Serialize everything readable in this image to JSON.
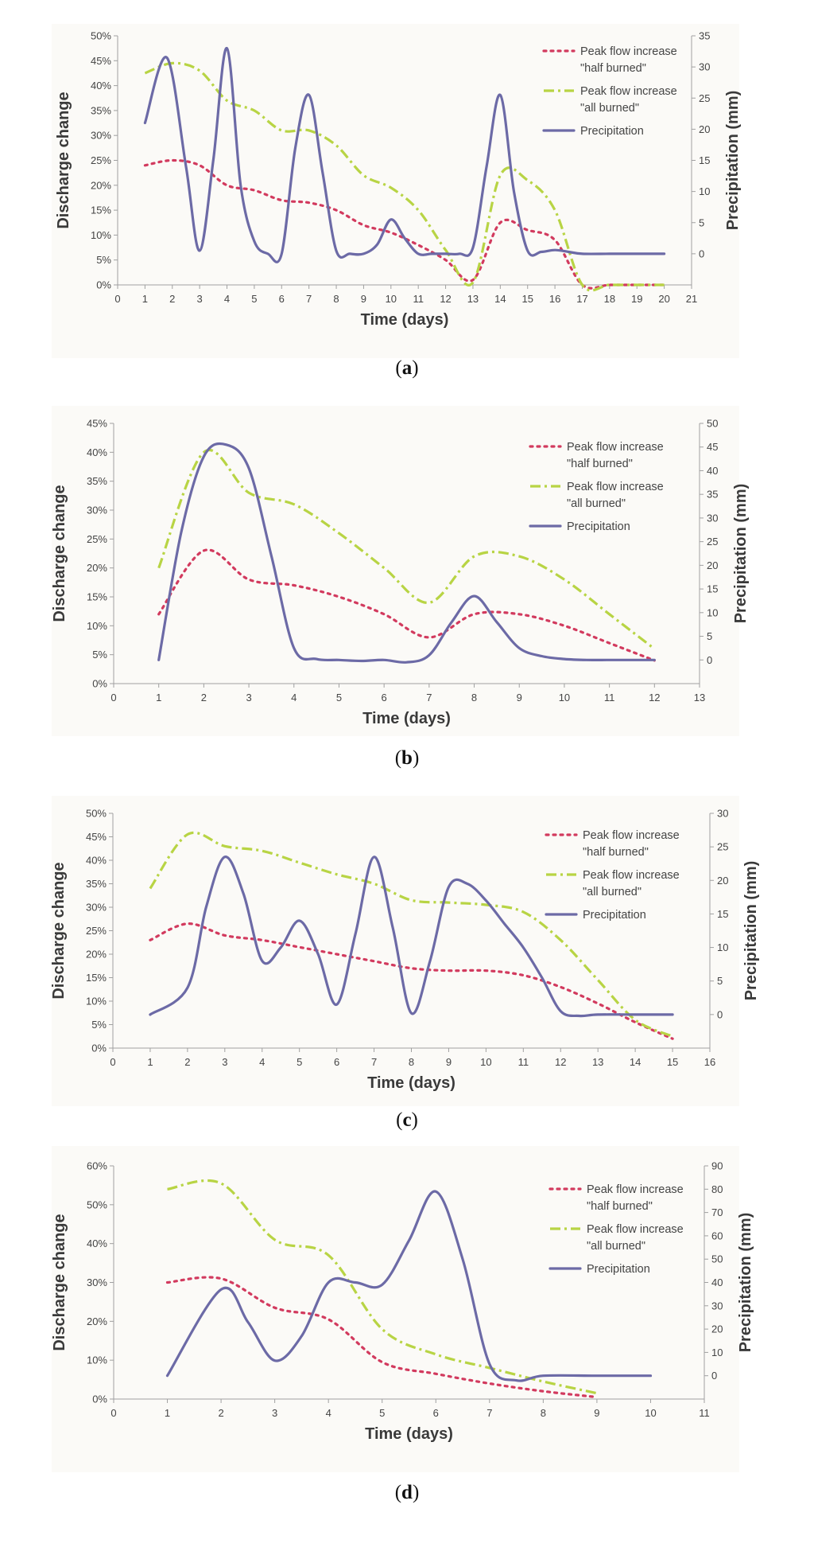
{
  "chart_data": [
    {
      "type": "line",
      "panel_label": "a",
      "xlabel": "Time (days)",
      "ylabel": "Discharge change",
      "y2label": "Precipitation (mm)",
      "xlim": [
        0,
        21
      ],
      "xticks": [
        0,
        1,
        2,
        3,
        4,
        5,
        6,
        7,
        8,
        9,
        10,
        11,
        12,
        13,
        14,
        15,
        16,
        17,
        18,
        19,
        20,
        21
      ],
      "ylim": [
        0,
        50
      ],
      "yticks": [
        0,
        5,
        10,
        15,
        20,
        25,
        30,
        35,
        40,
        45,
        50
      ],
      "y_format": "percent",
      "y2lim": [
        -5,
        35
      ],
      "y2ticks": [
        0,
        5,
        10,
        15,
        20,
        25,
        30,
        35
      ],
      "legend_position": "top-right",
      "series": [
        {
          "name": "Peak flow increase \"half burned\"",
          "legend_lines": [
            "Peak flow increase",
            "\"half burned\""
          ],
          "axis": "left",
          "style": "dotted",
          "color": "#d23a5e",
          "x": [
            1,
            2,
            3,
            4,
            5,
            6,
            7,
            8,
            9,
            10,
            11,
            12,
            13,
            14,
            15,
            16,
            17,
            18,
            19,
            20
          ],
          "y": [
            24,
            25,
            24,
            20,
            19,
            17,
            16.5,
            15,
            12,
            10.5,
            8,
            5,
            1,
            12.5,
            11,
            9,
            0,
            0,
            0,
            0
          ]
        },
        {
          "name": "Peak flow increase \"all burned\"",
          "legend_lines": [
            "Peak flow increase",
            "\"all burned\""
          ],
          "axis": "left",
          "style": "dashdot",
          "color": "#b8d444",
          "x": [
            1,
            2,
            3,
            4,
            5,
            6,
            7,
            8,
            9,
            10,
            11,
            12,
            13,
            14,
            15,
            16,
            17,
            18,
            19,
            20
          ],
          "y": [
            42.5,
            44.5,
            43,
            37,
            35,
            31,
            31,
            28,
            22,
            19.5,
            15,
            7,
            0.5,
            22,
            21,
            15,
            0,
            0,
            0,
            0
          ]
        },
        {
          "name": "Precipitation",
          "legend_lines": [
            "Precipitation"
          ],
          "axis": "right",
          "style": "solid",
          "color": "#6c6aa6",
          "x": [
            1,
            1.8,
            2.5,
            3,
            3.5,
            4,
            4.5,
            5,
            5.5,
            6,
            6.5,
            7,
            7.5,
            8,
            8.5,
            9,
            9.5,
            10,
            10.5,
            11,
            11.5,
            12,
            12.5,
            13,
            13.5,
            14,
            14.5,
            15,
            15.5,
            16,
            16.5,
            17,
            18,
            19,
            20
          ],
          "y": [
            21,
            31.5,
            14,
            0.5,
            15,
            33,
            11,
            2,
            0,
            0,
            17,
            25.5,
            13,
            0.5,
            0,
            0,
            1.5,
            5.5,
            2.5,
            0,
            0,
            0,
            0,
            1,
            14,
            25.5,
            10,
            0.5,
            0.3,
            0.6,
            0.3,
            0,
            0,
            0,
            0
          ]
        }
      ]
    },
    {
      "type": "line",
      "panel_label": "b",
      "xlabel": "Time (days)",
      "ylabel": "Discharge change",
      "y2label": "Precipitation (mm)",
      "xlim": [
        0,
        13
      ],
      "xticks": [
        0,
        1,
        2,
        3,
        4,
        5,
        6,
        7,
        8,
        9,
        10,
        11,
        12,
        13
      ],
      "ylim": [
        0,
        45
      ],
      "yticks": [
        0,
        5,
        10,
        15,
        20,
        25,
        30,
        35,
        40,
        45
      ],
      "y_format": "percent",
      "y2lim": [
        -5,
        50
      ],
      "y2ticks": [
        0,
        5,
        10,
        15,
        20,
        25,
        30,
        35,
        40,
        45,
        50
      ],
      "legend_position": "top-right",
      "series": [
        {
          "name": "Peak flow increase \"half burned\"",
          "legend_lines": [
            "Peak flow increase",
            "\"half burned\""
          ],
          "axis": "left",
          "style": "dotted",
          "color": "#d23a5e",
          "x": [
            1,
            2,
            3,
            4,
            5,
            6,
            7,
            8,
            9,
            10,
            11,
            12
          ],
          "y": [
            12,
            23,
            18,
            17,
            15,
            12,
            8,
            12,
            12,
            10,
            7,
            4
          ]
        },
        {
          "name": "Peak flow increase \"all burned\"",
          "legend_lines": [
            "Peak flow increase",
            "\"all burned\""
          ],
          "axis": "left",
          "style": "dashdot",
          "color": "#b8d444",
          "x": [
            1,
            2,
            3,
            4,
            5,
            6,
            7,
            8,
            9,
            10,
            11,
            12
          ],
          "y": [
            20,
            40,
            33,
            31,
            26,
            20,
            14,
            22,
            22,
            18,
            12,
            6
          ]
        },
        {
          "name": "Precipitation",
          "legend_lines": [
            "Precipitation"
          ],
          "axis": "right",
          "style": "solid",
          "color": "#6c6aa6",
          "x": [
            1,
            1.5,
            2,
            2.5,
            3,
            3.5,
            4,
            4.5,
            5,
            5.5,
            6,
            6.5,
            7,
            7.5,
            8,
            8.5,
            9,
            9.5,
            10,
            10.5,
            11,
            11.5,
            12
          ],
          "y": [
            0,
            27,
            43,
            45.5,
            40.5,
            22,
            2.5,
            0.2,
            0,
            -0.2,
            0,
            -0.5,
            1,
            8,
            13.5,
            8,
            2.5,
            0.8,
            0.2,
            0,
            0,
            0,
            0
          ]
        }
      ]
    },
    {
      "type": "line",
      "panel_label": "c",
      "xlabel": "Time (days)",
      "ylabel": "Discharge change",
      "y2label": "Precipitation (mm)",
      "xlim": [
        0,
        16
      ],
      "xticks": [
        0,
        1,
        2,
        3,
        4,
        5,
        6,
        7,
        8,
        9,
        10,
        11,
        12,
        13,
        14,
        15,
        16
      ],
      "ylim": [
        0,
        50
      ],
      "yticks": [
        0,
        5,
        10,
        15,
        20,
        25,
        30,
        35,
        40,
        45,
        50
      ],
      "y_format": "percent",
      "y2lim": [
        -5,
        30
      ],
      "y2ticks": [
        0,
        5,
        10,
        15,
        20,
        25,
        30
      ],
      "legend_position": "top-right",
      "series": [
        {
          "name": "Peak flow increase \"half burned\"",
          "legend_lines": [
            "Peak flow increase",
            "\"half burned\""
          ],
          "axis": "left",
          "style": "dotted",
          "color": "#d23a5e",
          "x": [
            1,
            2,
            3,
            4,
            5,
            6,
            7,
            8,
            9,
            10,
            11,
            12,
            13,
            14,
            15
          ],
          "y": [
            23,
            26.5,
            24,
            23,
            21.5,
            20,
            18.5,
            17,
            16.5,
            16.5,
            15.5,
            13,
            9.5,
            5.5,
            2
          ]
        },
        {
          "name": "Peak flow increase \"all burned\"",
          "legend_lines": [
            "Peak flow increase",
            "\"all burned\""
          ],
          "axis": "left",
          "style": "dashdot",
          "color": "#b8d444",
          "x": [
            1,
            2,
            3,
            4,
            5,
            6,
            7,
            8,
            9,
            10,
            11,
            12,
            13,
            14,
            15
          ],
          "y": [
            34,
            45.5,
            43,
            42,
            39.5,
            37,
            35,
            31.5,
            31,
            30.5,
            29,
            23,
            14.5,
            6,
            2.5
          ]
        },
        {
          "name": "Precipitation",
          "legend_lines": [
            "Precipitation"
          ],
          "axis": "right",
          "style": "solid",
          "color": "#6c6aa6",
          "x": [
            1,
            2,
            2.5,
            3,
            3.5,
            4,
            4.5,
            5,
            5.5,
            6,
            6.5,
            7,
            7.5,
            8,
            8.5,
            9,
            9.5,
            10,
            10.5,
            11,
            11.5,
            12,
            12.5,
            13,
            14,
            15
          ],
          "y": [
            0,
            4,
            16,
            23.5,
            18,
            8,
            10,
            14,
            9,
            1.5,
            12,
            23.5,
            13,
            0.2,
            8,
            19,
            19.5,
            17,
            13.5,
            10,
            5.5,
            0.5,
            -0.2,
            0,
            0,
            0
          ]
        }
      ]
    },
    {
      "type": "line",
      "panel_label": "d",
      "xlabel": "Time (days)",
      "ylabel": "Discharge change",
      "y2label": "Precipitation (mm)",
      "xlim": [
        0,
        11
      ],
      "xticks": [
        0,
        1,
        2,
        3,
        4,
        5,
        6,
        7,
        8,
        9,
        10,
        11
      ],
      "ylim": [
        0,
        60
      ],
      "yticks": [
        0,
        10,
        20,
        30,
        40,
        50,
        60
      ],
      "y_format": "percent",
      "y2lim": [
        -10,
        90
      ],
      "y2ticks": [
        0,
        10,
        20,
        30,
        40,
        50,
        60,
        70,
        80,
        90
      ],
      "legend_position": "top-right",
      "series": [
        {
          "name": "Peak flow increase \"half burned\"",
          "legend_lines": [
            "Peak flow increase",
            "\"half burned\""
          ],
          "axis": "left",
          "style": "dotted",
          "color": "#d23a5e",
          "x": [
            1,
            2,
            3,
            4,
            5,
            6,
            7,
            8,
            9
          ],
          "y": [
            30,
            31,
            23.5,
            20.5,
            9.5,
            6.5,
            4,
            2,
            0.5
          ]
        },
        {
          "name": "Peak flow increase \"all burned\"",
          "legend_lines": [
            "Peak flow increase",
            "\"all burned\""
          ],
          "axis": "left",
          "style": "dashdot",
          "color": "#b8d444",
          "x": [
            1,
            2,
            3,
            4,
            5,
            6,
            7,
            8,
            9
          ],
          "y": [
            54,
            55.5,
            41,
            37,
            18,
            11.5,
            8,
            4.5,
            1.5
          ]
        },
        {
          "name": "Precipitation",
          "legend_lines": [
            "Precipitation"
          ],
          "axis": "right",
          "style": "solid",
          "color": "#6c6aa6",
          "x": [
            1,
            2,
            2.5,
            3,
            3.5,
            4,
            4.5,
            5,
            5.5,
            6,
            6.5,
            7,
            7.5,
            8,
            9,
            10
          ],
          "y": [
            0,
            37,
            23,
            6.5,
            17,
            40,
            40,
            39,
            58,
            79,
            50,
            5,
            -2,
            0,
            0,
            0
          ]
        }
      ]
    }
  ]
}
